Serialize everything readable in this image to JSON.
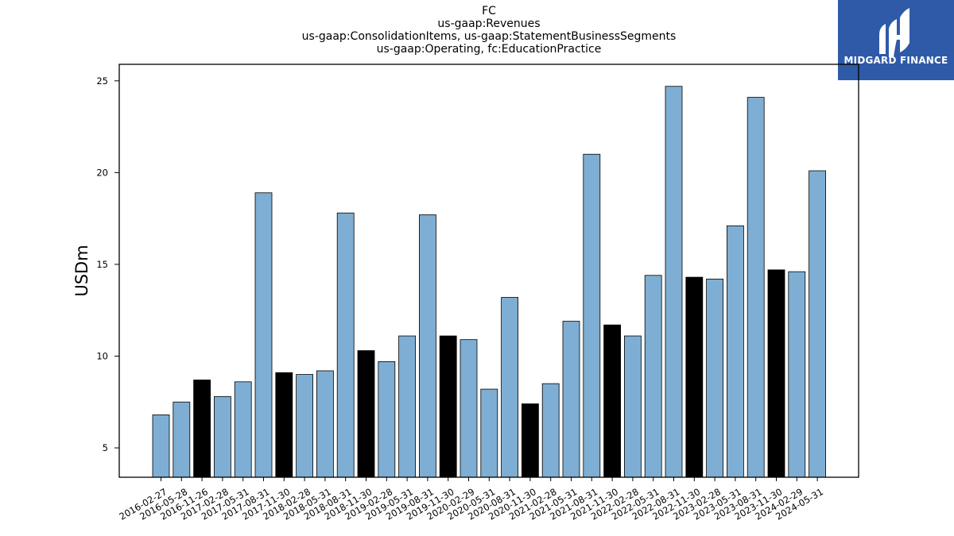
{
  "logo": {
    "text": "MIDGARD FINANCE",
    "icon": "midgard-logo-icon",
    "color": "#2f5aa8"
  },
  "chart_data": {
    "type": "bar",
    "title_lines": [
      "FC",
      "us-gaap:Revenues",
      "us-gaap:ConsolidationItems, us-gaap:StatementBusinessSegments",
      "us-gaap:Operating, fc:EducationPractice"
    ],
    "xlabel": "",
    "ylabel": "USDm",
    "ylim": [
      3.4,
      25.9
    ],
    "yticks": [
      5,
      10,
      15,
      20,
      25
    ],
    "grid": false,
    "colors": {
      "normal": "#7eaed3",
      "highlight": "#000000"
    },
    "categories": [
      "2016-02-27",
      "2016-05-28",
      "2016-11-26",
      "2017-02-28",
      "2017-05-31",
      "2017-08-31",
      "2017-11-30",
      "2018-02-28",
      "2018-05-31",
      "2018-08-31",
      "2018-11-30",
      "2019-02-28",
      "2019-05-31",
      "2019-08-31",
      "2019-11-30",
      "2020-02-29",
      "2020-05-31",
      "2020-08-31",
      "2020-11-30",
      "2021-02-28",
      "2021-05-31",
      "2021-08-31",
      "2021-11-30",
      "2022-02-28",
      "2022-05-31",
      "2022-08-31",
      "2022-11-30",
      "2023-02-28",
      "2023-05-31",
      "2023-08-31",
      "2023-11-30",
      "2024-02-29",
      "2024-05-31"
    ],
    "values": [
      6.8,
      7.5,
      8.7,
      7.8,
      8.6,
      18.9,
      9.1,
      9.0,
      9.2,
      17.8,
      10.3,
      9.7,
      11.1,
      17.7,
      11.1,
      10.9,
      8.2,
      13.2,
      7.4,
      8.5,
      11.9,
      21.0,
      11.7,
      11.1,
      14.4,
      24.7,
      14.3,
      14.2,
      17.1,
      24.1,
      14.7,
      14.6,
      20.1
    ],
    "highlight": [
      false,
      false,
      true,
      false,
      false,
      false,
      true,
      false,
      false,
      false,
      true,
      false,
      false,
      false,
      true,
      false,
      false,
      false,
      true,
      false,
      false,
      false,
      true,
      false,
      false,
      false,
      true,
      false,
      false,
      false,
      true,
      false,
      false
    ]
  }
}
